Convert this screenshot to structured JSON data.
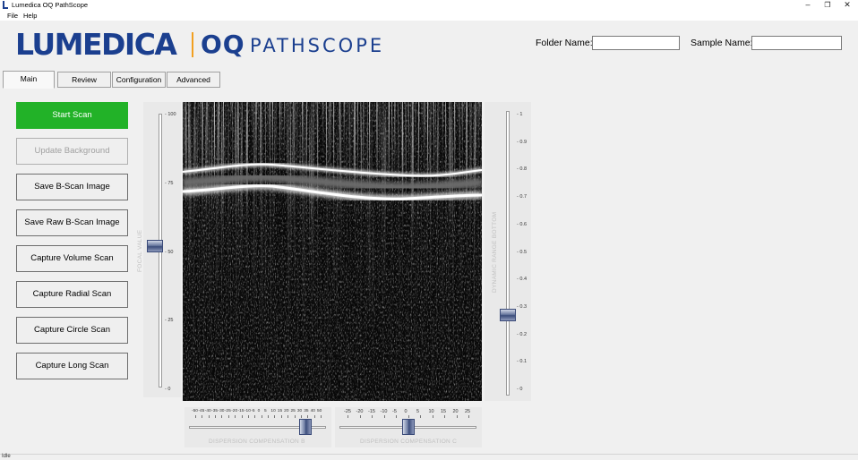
{
  "window": {
    "title": "Lumedica OQ PathScope",
    "controls": {
      "minimize": "–",
      "restore": "❐",
      "close": "✕"
    }
  },
  "menu": [
    "File",
    "Help"
  ],
  "logo": {
    "brand": "LUMEDICA",
    "product_prefix": "OQ",
    "product_name": "PATHSCOPE"
  },
  "fields": {
    "folder": {
      "label": "Folder Name:",
      "value": ""
    },
    "sample": {
      "label": "Sample Name:",
      "value": ""
    }
  },
  "tabs": [
    {
      "label": "Main",
      "active": true
    },
    {
      "label": "Review",
      "active": false
    },
    {
      "label": "Configuration",
      "active": false
    },
    {
      "label": "Advanced",
      "active": false
    }
  ],
  "buttons": [
    {
      "label": "Start Scan",
      "state": "primary"
    },
    {
      "label": "Update Background",
      "state": "disabled"
    },
    {
      "label": "Save B-Scan Image",
      "state": "normal"
    },
    {
      "label": "Save Raw B-Scan Image",
      "state": "normal"
    },
    {
      "label": "Capture Volume Scan",
      "state": "normal"
    },
    {
      "label": "Capture Radial Scan",
      "state": "normal"
    },
    {
      "label": "Capture Circle Scan",
      "state": "normal"
    },
    {
      "label": "Capture Long Scan",
      "state": "normal"
    }
  ],
  "focal_slider": {
    "caption": "FOCAL VALUE",
    "ticks": [
      "100",
      "75",
      "50",
      "25",
      "0"
    ],
    "min": 0,
    "max": 100,
    "value": 52
  },
  "dynamic_range_slider": {
    "caption": "DYNAMIC RANGE BOTTOM",
    "ticks": [
      "1",
      "0.9",
      "0.8",
      "0.7",
      "0.6",
      "0.5",
      "0.4",
      "0.3",
      "0.2",
      "0.1",
      "0"
    ],
    "min": 0,
    "max": 1,
    "value": 0.27
  },
  "dispersion_b": {
    "caption": "DISPERSION COMPENSATION B",
    "ticks": [
      "-50",
      "-45",
      "-40",
      "-35",
      "-30",
      "-25",
      "-20",
      "-15",
      "-10",
      "-5",
      "0",
      "5",
      "10",
      "15",
      "20",
      "25",
      "30",
      "35",
      "40",
      "50"
    ],
    "min": -50,
    "max": 50,
    "value": 38
  },
  "dispersion_c": {
    "caption": "DISPERSION COMPENSATION C",
    "ticks": [
      "-25",
      "-20",
      "-15",
      "-10",
      "-5",
      "0",
      "5",
      "10",
      "15",
      "20",
      "25"
    ],
    "min": -25,
    "max": 25,
    "value": 0
  },
  "status": {
    "text": "Idle"
  },
  "colors": {
    "accent_green": "#22b228",
    "brand_blue": "#1b3f8f",
    "brand_orange": "#f2a020"
  }
}
